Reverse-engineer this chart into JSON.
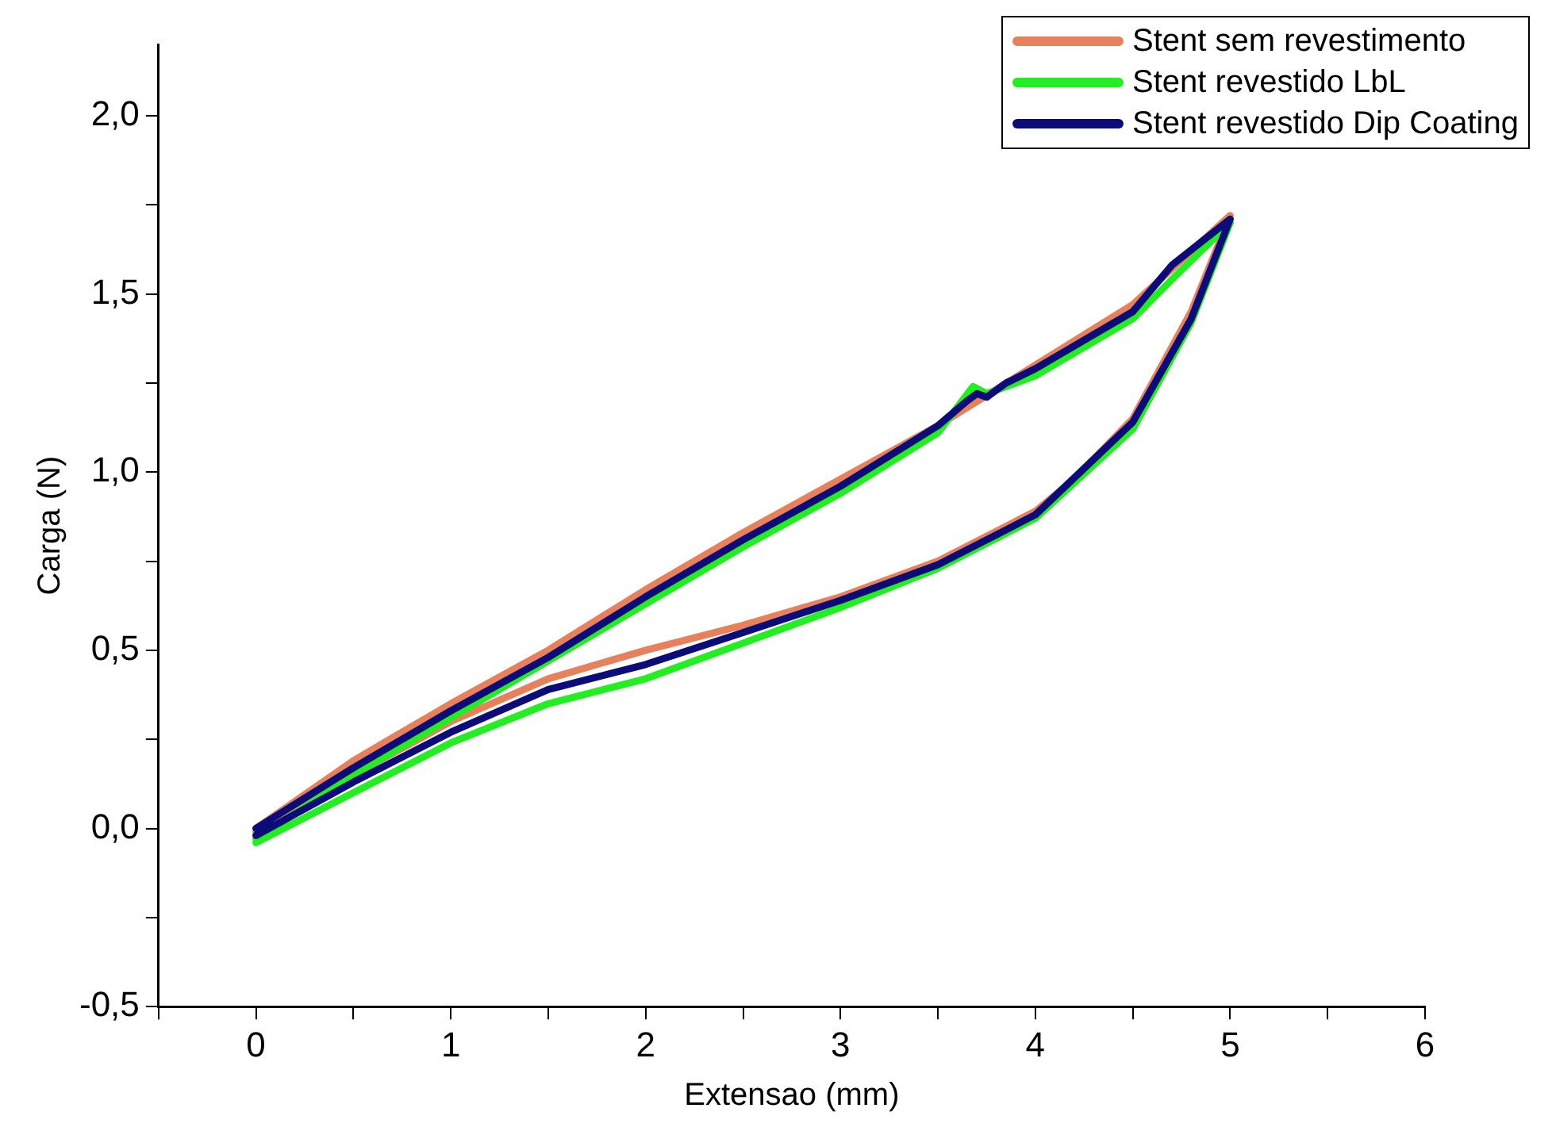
{
  "chart_data": {
    "type": "line",
    "xlabel": "Extensao (mm)",
    "ylabel": "Carga (N)",
    "xlim": [
      -0.5,
      6
    ],
    "ylim": [
      -0.5,
      2.2
    ],
    "xticks": [
      {
        "value": -0.5,
        "label": null
      },
      0,
      {
        "value": 0.5,
        "label": null
      },
      1,
      {
        "value": 1.5,
        "label": null
      },
      2,
      {
        "value": 2.5,
        "label": null
      },
      3,
      {
        "value": 3.5,
        "label": null
      },
      4,
      {
        "value": 4.5,
        "label": null
      },
      5,
      {
        "value": 5.5,
        "label": null
      },
      6
    ],
    "yticks": [
      {
        "value": -0.5,
        "label": "-0,5"
      },
      {
        "value": -0.25,
        "label": null
      },
      {
        "value": 0,
        "label": "0,0"
      },
      {
        "value": 0.25,
        "label": null
      },
      {
        "value": 0.5,
        "label": "0,5"
      },
      {
        "value": 0.75,
        "label": null
      },
      {
        "value": 1,
        "label": "1,0"
      },
      {
        "value": 1.25,
        "label": null
      },
      {
        "value": 1.5,
        "label": "1,5"
      },
      {
        "value": 1.75,
        "label": null
      },
      {
        "value": 2,
        "label": "2,0"
      }
    ],
    "grid": false,
    "legend": "top right",
    "marker": "none",
    "line_style": "solid",
    "series": [
      {
        "name": "Stent sem revestimento",
        "color": "#e8805c",
        "x": [
          0,
          0.5,
          1,
          1.5,
          2,
          2.5,
          3,
          3.5,
          4,
          4.5,
          4.8,
          5,
          4.8,
          4.5,
          4.2,
          4,
          3.5,
          3,
          2.5,
          2,
          1.5,
          1,
          0.5,
          0
        ],
        "values": [
          0,
          0.19,
          0.35,
          0.5,
          0.67,
          0.83,
          0.98,
          1.13,
          1.3,
          1.47,
          1.62,
          1.72,
          1.45,
          1.15,
          0.98,
          0.89,
          0.75,
          0.65,
          0.57,
          0.5,
          0.42,
          0.3,
          0.15,
          -0.01
        ]
      },
      {
        "name": "Stent revestido LbL",
        "color": "#22ee22",
        "x": [
          0,
          0.5,
          1,
          1.5,
          2,
          2.5,
          3,
          3.5,
          3.68,
          3.75,
          4,
          4.5,
          4.7,
          5,
          4.8,
          4.5,
          4,
          3.5,
          3,
          2.5,
          2,
          1.5,
          1,
          0.5,
          0
        ],
        "values": [
          -0.03,
          0.15,
          0.31,
          0.47,
          0.63,
          0.79,
          0.94,
          1.11,
          1.24,
          1.22,
          1.27,
          1.43,
          1.54,
          1.7,
          1.42,
          1.12,
          0.87,
          0.73,
          0.62,
          0.52,
          0.42,
          0.35,
          0.24,
          0.1,
          -0.04
        ]
      },
      {
        "name": "Stent revestido Dip Coating",
        "color": "#0b0b7a",
        "x": [
          0,
          0.5,
          1,
          1.5,
          2,
          2.5,
          3,
          3.5,
          3.65,
          3.7,
          3.75,
          3.85,
          4,
          4.5,
          4.7,
          5,
          4.8,
          4.5,
          4,
          3.5,
          3,
          2.5,
          2,
          1.5,
          1,
          0.5,
          0
        ],
        "values": [
          0,
          0.17,
          0.33,
          0.48,
          0.65,
          0.81,
          0.96,
          1.13,
          1.2,
          1.22,
          1.21,
          1.25,
          1.29,
          1.45,
          1.58,
          1.71,
          1.43,
          1.14,
          0.88,
          0.74,
          0.64,
          0.55,
          0.46,
          0.39,
          0.27,
          0.13,
          -0.02
        ]
      }
    ]
  }
}
